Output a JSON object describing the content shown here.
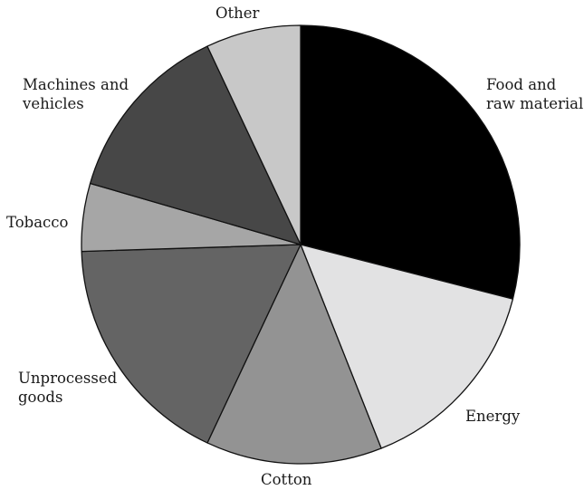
{
  "chart_data": {
    "type": "pie",
    "title": "",
    "slices": [
      {
        "label": [
          "Food and",
          "raw materials"
        ],
        "value": 29.0,
        "color": "#000000"
      },
      {
        "label": [
          "Energy"
        ],
        "value": 15.0,
        "color": "#e2e2e3"
      },
      {
        "label": [
          "Cotton"
        ],
        "value": 13.0,
        "color": "#939393"
      },
      {
        "label": [
          "Unprocessed",
          "goods"
        ],
        "value": 17.5,
        "color": "#646464"
      },
      {
        "label": [
          "Tobacco"
        ],
        "value": 5.0,
        "color": "#a6a6a6"
      },
      {
        "label": [
          "Machines and",
          "vehicles"
        ],
        "value": 13.5,
        "color": "#474747"
      },
      {
        "label": [
          "Other"
        ],
        "value": 7.0,
        "color": "#c8c8c8"
      }
    ]
  }
}
